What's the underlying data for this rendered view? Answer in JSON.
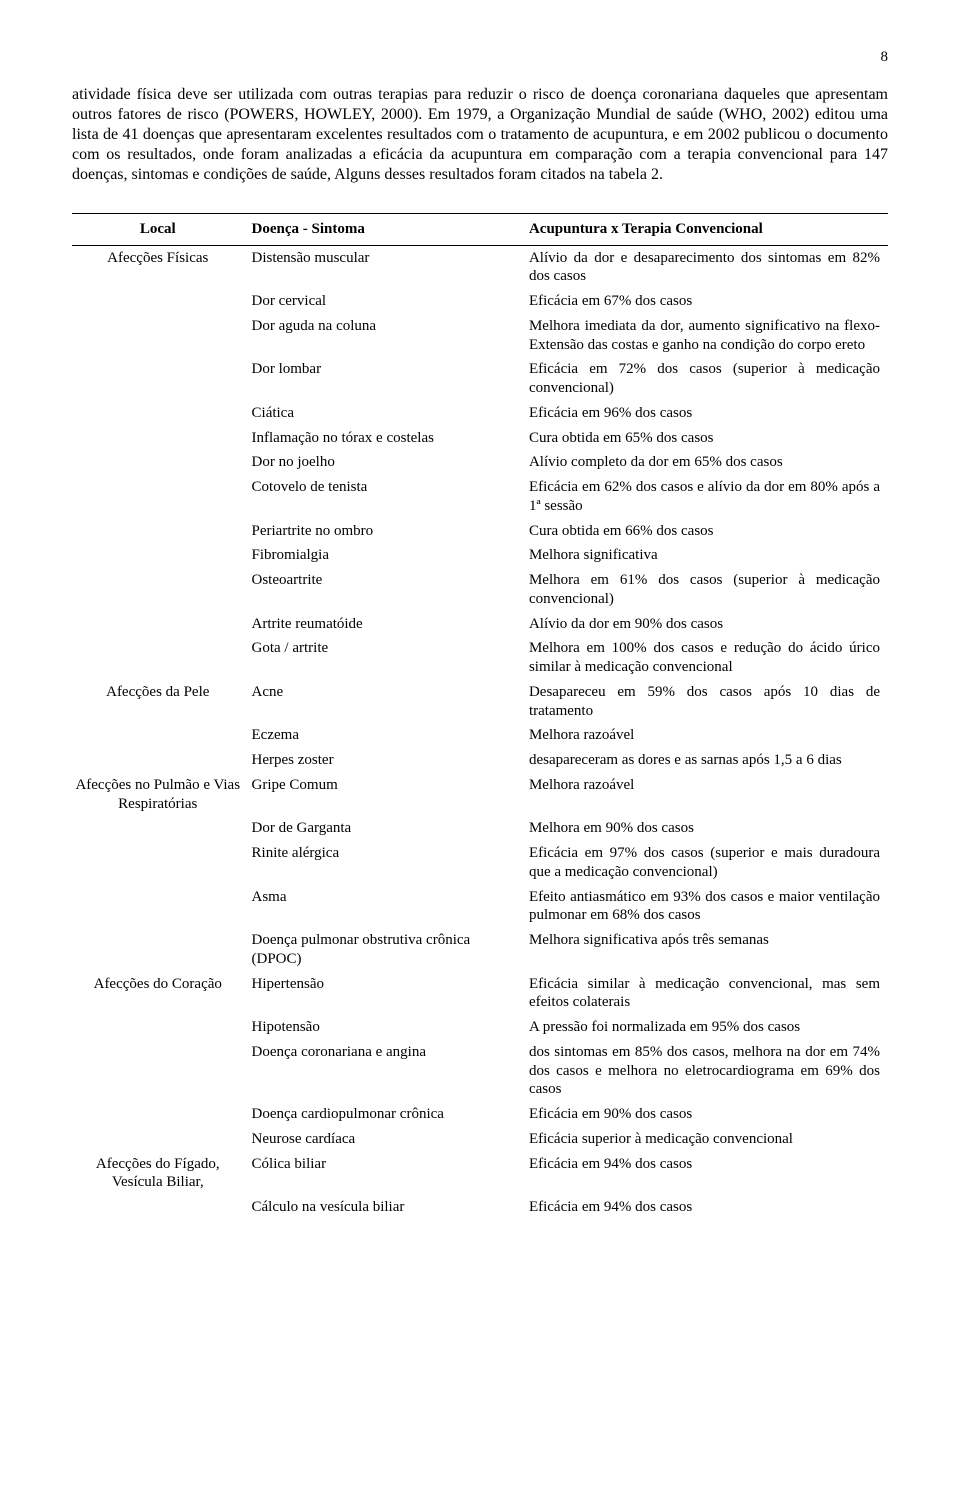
{
  "page_number": "8",
  "paragraph": "atividade física deve ser utilizada com outras terapias para reduzir o risco de doença coronariana daqueles que apresentam outros fatores de risco (POWERS, HOWLEY, 2000). Em 1979, a Organização Mundial de saúde (WHO, 2002) editou uma lista de 41 doenças que apresentaram excelentes resultados com o tratamento de acupuntura, e em 2002 publicou o documento com os resultados, onde foram analizadas a eficácia da acupuntura em comparação com a terapia convencional para 147 doenças, sintomas e condições de saúde, Alguns desses resultados foram citados na tabela 2.",
  "table": {
    "headers": {
      "local": "Local",
      "sintoma": "Doença - Sintoma",
      "result": "Acupuntura x Terapia Convencional"
    },
    "rows": [
      {
        "local": "Afecções Físicas",
        "sintoma": "Distensão muscular",
        "result": "Alívio da dor e desaparecimento dos sintomas em 82% dos casos"
      },
      {
        "local": "",
        "sintoma": "Dor cervical",
        "result": "Eficácia em 67% dos casos"
      },
      {
        "local": "",
        "sintoma": "Dor aguda na coluna",
        "result": "Melhora imediata da dor, aumento significativo na flexo-Extensão das costas e ganho na condição do corpo ereto"
      },
      {
        "local": "",
        "sintoma": "Dor lombar",
        "result": "Eficácia em 72% dos casos (superior à medicação convencional)"
      },
      {
        "local": "",
        "sintoma": "Ciática",
        "result": "Eficácia em 96% dos casos"
      },
      {
        "local": "",
        "sintoma": "Inflamação no tórax e costelas",
        "result": "Cura obtida em 65% dos casos"
      },
      {
        "local": "",
        "sintoma": "Dor no joelho",
        "result": "Alívio completo da dor em 65% dos casos"
      },
      {
        "local": "",
        "sintoma": "Cotovelo de tenista",
        "result": "Eficácia em 62% dos casos e alívio da dor em 80% após a 1ª sessão"
      },
      {
        "local": "",
        "sintoma": "Periartrite no ombro",
        "result": "Cura obtida em 66% dos casos"
      },
      {
        "local": "",
        "sintoma": "Fibromialgia",
        "result": "Melhora significativa"
      },
      {
        "local": "",
        "sintoma": "Osteoartrite",
        "result": "Melhora em 61% dos casos (superior à medicação convencional)"
      },
      {
        "local": "",
        "sintoma": "Artrite reumatóide",
        "result": "Alívio da dor em 90% dos casos"
      },
      {
        "local": "",
        "sintoma": "Gota / artrite",
        "result": "Melhora em 100% dos casos e redução do ácido úrico similar à medicação convencional"
      },
      {
        "local": "Afecções da Pele",
        "sintoma": "Acne",
        "result": "Desapareceu em 59% dos casos após 10 dias de tratamento"
      },
      {
        "local": "",
        "sintoma": "Eczema",
        "result": "Melhora razoável"
      },
      {
        "local": "",
        "sintoma": "Herpes zoster",
        "result": "desapareceram as dores e as sarnas após 1,5 a 6 dias"
      },
      {
        "local": "Afecções no Pulmão e Vias Respiratórias",
        "sintoma": "Gripe Comum",
        "result": "Melhora razoável"
      },
      {
        "local": "",
        "sintoma": "Dor de Garganta",
        "result": "Melhora em 90% dos casos"
      },
      {
        "local": "",
        "sintoma": "Rinite alérgica",
        "result": "Eficácia em 97% dos casos (superior e mais duradoura que a medicação convencional)"
      },
      {
        "local": "",
        "sintoma": "Asma",
        "result": "Efeito antiasmático em 93% dos casos e maior ventilação pulmonar em 68% dos casos"
      },
      {
        "local": "",
        "sintoma": "Doença pulmonar obstrutiva crônica (DPOC)",
        "result": "Melhora significativa após três semanas"
      },
      {
        "local": "Afecções do Coração",
        "sintoma": "Hipertensão",
        "result": "Eficácia similar à medicação convencional, mas sem efeitos colaterais"
      },
      {
        "local": "",
        "sintoma": "Hipotensão",
        "result": "A pressão foi normalizada em 95% dos casos"
      },
      {
        "local": "",
        "sintoma": "Doença coronariana e angina",
        "result": "dos sintomas em 85% dos casos, melhora na dor em 74% dos casos e melhora no eletrocardiograma em 69% dos casos"
      },
      {
        "local": "",
        "sintoma": "Doença cardiopulmonar crônica",
        "result": "Eficácia em 90% dos casos"
      },
      {
        "local": "",
        "sintoma": "Neurose cardíaca",
        "result": "Eficácia superior à medicação convencional"
      },
      {
        "local": "Afecções do Fígado, Vesícula Biliar,",
        "sintoma": "Cólica biliar",
        "result": "Eficácia em 94% dos casos"
      },
      {
        "local": "",
        "sintoma": "Cálculo na vesícula biliar",
        "result": "Eficácia em 94% dos casos"
      }
    ]
  }
}
